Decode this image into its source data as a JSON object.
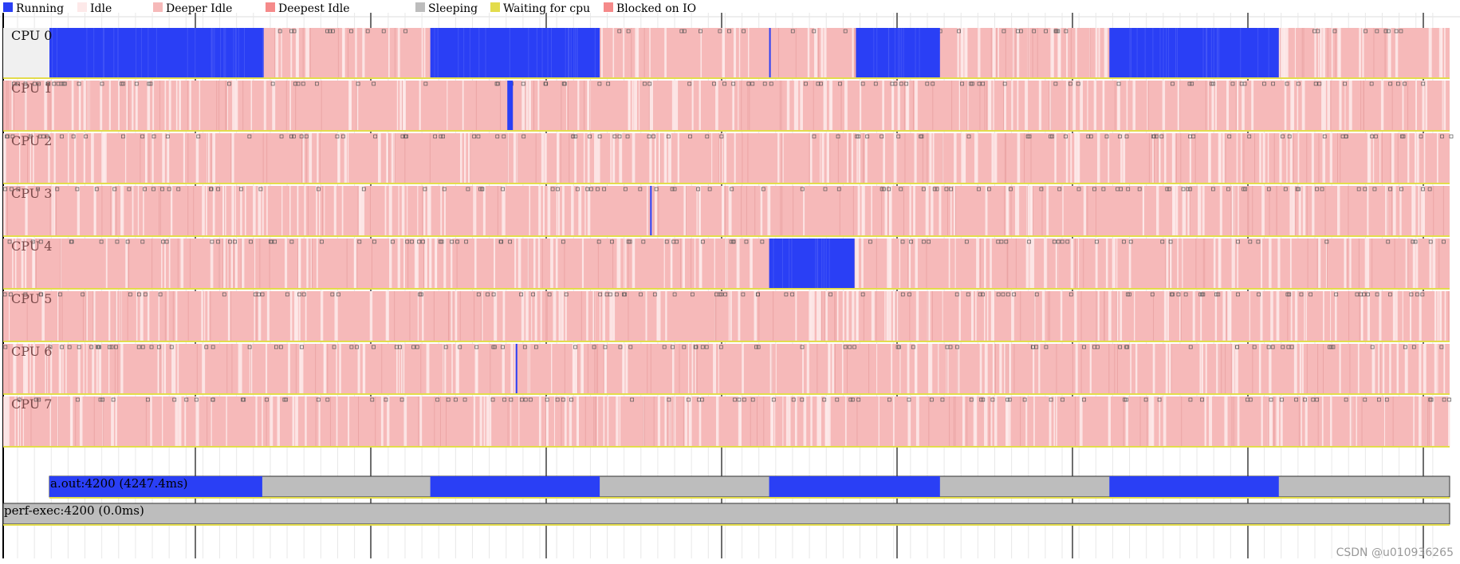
{
  "chart_data": {
    "type": "timeline",
    "colors": {
      "Running": "#2a3ff5",
      "Idle": "#fde9e9",
      "Deeper Idle": "#f6b9b9",
      "Deepest Idle": "#f58a8a",
      "Sleeping": "#bdbdbd",
      "Waiting for cpu": "#e3dc4c",
      "Blocked on IO": "#f58a8a"
    },
    "legend": [
      "Running",
      "Idle",
      "Deeper Idle",
      "Deepest Idle",
      "Sleeping",
      "Waiting for cpu",
      "Blocked on IO"
    ],
    "cpus": [
      {
        "label": "CPU 0",
        "running": [
          [
            0.0,
            0.153
          ],
          [
            0.272,
            0.393
          ],
          [
            0.514,
            0.515
          ],
          [
            0.576,
            0.636
          ],
          [
            0.757,
            0.878
          ]
        ]
      },
      {
        "label": "CPU 1",
        "running": [
          [
            0.327,
            0.331
          ]
        ]
      },
      {
        "label": "CPU 2",
        "running": []
      },
      {
        "label": "CPU 3",
        "running": [
          [
            0.429,
            0.43
          ]
        ]
      },
      {
        "label": "CPU 4",
        "running": [
          [
            0.514,
            0.575
          ]
        ]
      },
      {
        "label": "CPU 5",
        "running": []
      },
      {
        "label": "CPU 6",
        "running": [
          [
            0.333,
            0.334
          ]
        ]
      },
      {
        "label": "CPU 7",
        "running": []
      }
    ],
    "processes": [
      {
        "label": "a.out:4200 (4247.4ms)",
        "start": 0.0,
        "running": [
          [
            0.0,
            0.152
          ],
          [
            0.272,
            0.393
          ],
          [
            0.514,
            0.636
          ],
          [
            0.757,
            0.878
          ]
        ]
      },
      {
        "label": "perf-exec:4200 (0.0ms)",
        "start": -0.04,
        "running": []
      }
    ]
  },
  "watermark": "CSDN @u010936265"
}
